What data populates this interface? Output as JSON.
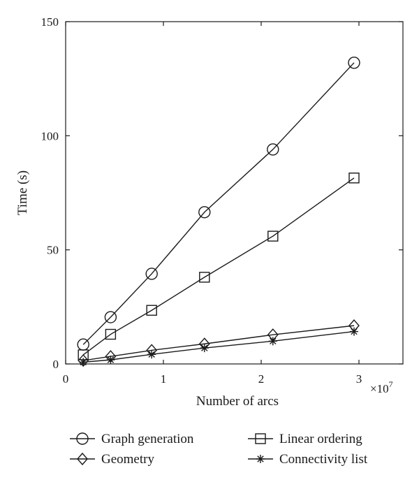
{
  "chart_data": {
    "type": "line",
    "xlabel": "Number of arcs",
    "ylabel": "Time (s)",
    "x_multiplier_label": "×10",
    "x_multiplier_exponent": "7",
    "xlim": [
      0,
      3.45
    ],
    "ylim": [
      0,
      150
    ],
    "xticks": [
      0,
      1,
      2,
      3
    ],
    "xtick_labels": [
      "0",
      "1",
      "2",
      "3"
    ],
    "yticks": [
      0,
      50,
      100,
      150
    ],
    "ytick_labels": [
      "0",
      "50",
      "100",
      "150"
    ],
    "grid": false,
    "legend_position": "bottom",
    "x": [
      0.18,
      0.46,
      0.88,
      1.42,
      2.12,
      2.95
    ],
    "series": [
      {
        "name": "Graph generation",
        "marker": "circle",
        "values": [
          8.5,
          20.5,
          39.5,
          66.5,
          94,
          132
        ]
      },
      {
        "name": "Linear ordering",
        "marker": "square",
        "values": [
          4,
          13,
          23.5,
          38,
          56,
          81.5
        ]
      },
      {
        "name": "Geometry",
        "marker": "diamond",
        "values": [
          1.5,
          3.3,
          6,
          8.8,
          12.8,
          16.8
        ]
      },
      {
        "name": "Connectivity list",
        "marker": "star",
        "values": [
          0.8,
          1.8,
          4.2,
          7,
          10,
          14.2
        ]
      }
    ]
  }
}
